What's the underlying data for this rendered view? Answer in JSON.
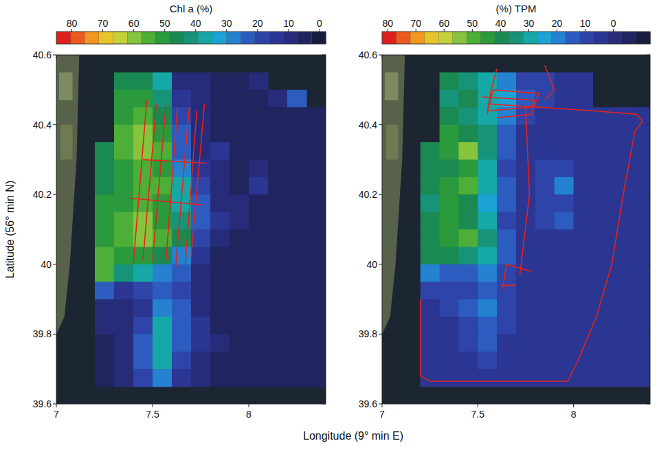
{
  "chart_data": [
    {
      "type": "heatmap",
      "title": "Chl a (%)",
      "xlabel": "Longitude (9° min E)",
      "ylabel": "Latitude (56° min N)",
      "xlim": [
        7,
        8.4
      ],
      "ylim": [
        39.6,
        40.6
      ],
      "xticks": [
        7,
        7.5,
        8
      ],
      "yticks": [
        39.6,
        39.8,
        40,
        40.2,
        40.4,
        40.6
      ],
      "colorbar": {
        "range": [
          85,
          -2
        ],
        "ticks": [
          80,
          70,
          60,
          50,
          40,
          30,
          20,
          10,
          0
        ]
      },
      "x": [
        7.05,
        7.15,
        7.25,
        7.35,
        7.45,
        7.55,
        7.65,
        7.75,
        7.85,
        7.95,
        8.05,
        8.15,
        8.25,
        8.35
      ],
      "y": [
        40.575,
        40.525,
        40.475,
        40.425,
        40.375,
        40.325,
        40.275,
        40.225,
        40.175,
        40.125,
        40.075,
        40.025,
        39.975,
        39.925,
        39.875,
        39.825,
        39.775,
        39.725,
        39.675,
        39.625
      ],
      "values": [
        [
          null,
          null,
          null,
          null,
          null,
          null,
          null,
          null,
          null,
          null,
          null,
          null,
          null,
          null
        ],
        [
          null,
          null,
          null,
          45,
          45,
          35,
          10,
          8,
          5,
          5,
          10,
          null,
          null,
          null
        ],
        [
          null,
          null,
          null,
          50,
          50,
          40,
          15,
          8,
          5,
          5,
          5,
          10,
          25,
          null
        ],
        [
          null,
          null,
          null,
          50,
          55,
          45,
          20,
          8,
          5,
          5,
          5,
          5,
          5,
          5
        ],
        [
          null,
          null,
          null,
          55,
          60,
          50,
          25,
          10,
          5,
          5,
          5,
          5,
          5,
          5
        ],
        [
          null,
          null,
          45,
          55,
          60,
          55,
          25,
          10,
          15,
          5,
          5,
          5,
          5,
          5
        ],
        [
          null,
          null,
          45,
          50,
          55,
          50,
          30,
          15,
          10,
          5,
          10,
          5,
          5,
          5
        ],
        [
          null,
          null,
          45,
          50,
          55,
          55,
          35,
          20,
          10,
          5,
          15,
          5,
          5,
          5
        ],
        [
          null,
          null,
          50,
          50,
          55,
          50,
          35,
          25,
          10,
          10,
          5,
          5,
          5,
          5
        ],
        [
          null,
          null,
          50,
          55,
          60,
          50,
          40,
          25,
          15,
          10,
          5,
          5,
          5,
          5
        ],
        [
          null,
          null,
          50,
          55,
          60,
          55,
          45,
          20,
          10,
          5,
          5,
          5,
          5,
          5
        ],
        [
          null,
          null,
          55,
          50,
          50,
          45,
          30,
          15,
          5,
          5,
          5,
          5,
          5,
          5
        ],
        [
          null,
          null,
          55,
          40,
          35,
          30,
          25,
          10,
          5,
          5,
          5,
          5,
          5,
          5
        ],
        [
          null,
          null,
          25,
          15,
          20,
          25,
          20,
          10,
          5,
          5,
          5,
          5,
          5,
          5
        ],
        [
          null,
          null,
          10,
          10,
          15,
          30,
          25,
          10,
          5,
          5,
          5,
          5,
          5,
          5
        ],
        [
          null,
          null,
          8,
          10,
          20,
          35,
          25,
          15,
          5,
          5,
          5,
          5,
          5,
          5
        ],
        [
          null,
          null,
          5,
          10,
          25,
          35,
          25,
          15,
          10,
          5,
          5,
          5,
          5,
          5
        ],
        [
          null,
          null,
          5,
          10,
          25,
          35,
          20,
          10,
          5,
          5,
          5,
          5,
          5,
          5
        ],
        [
          null,
          null,
          5,
          8,
          20,
          30,
          15,
          8,
          5,
          5,
          5,
          5,
          5,
          5
        ],
        [
          null,
          null,
          null,
          null,
          null,
          null,
          null,
          null,
          null,
          null,
          null,
          null,
          null,
          null
        ]
      ],
      "tracks": [
        {
          "lon": [
            7.4,
            7.47
          ],
          "lat": [
            40.0,
            40.47
          ]
        },
        {
          "lon": [
            7.45,
            7.52
          ],
          "lat": [
            40.01,
            40.46
          ]
        },
        {
          "lon": [
            7.5,
            7.57
          ],
          "lat": [
            40.01,
            40.46
          ]
        },
        {
          "lon": [
            7.57,
            7.63
          ],
          "lat": [
            40.01,
            40.45
          ]
        },
        {
          "lon": [
            7.62,
            7.69
          ],
          "lat": [
            39.99,
            40.45
          ]
        },
        {
          "lon": [
            7.67,
            7.73
          ],
          "lat": [
            40.0,
            40.44
          ]
        },
        {
          "lon": [
            7.7,
            7.77
          ],
          "lat": [
            40.02,
            40.46
          ]
        },
        {
          "lon": [
            7.45,
            7.78
          ],
          "lat": [
            40.3,
            40.29
          ]
        },
        {
          "lon": [
            7.38,
            7.76
          ],
          "lat": [
            40.19,
            40.17
          ]
        }
      ]
    },
    {
      "type": "heatmap",
      "title": "(%) TPM",
      "xlim": [
        7,
        8.4
      ],
      "ylim": [
        39.6,
        40.6
      ],
      "xticks": [
        7,
        7.5,
        8
      ],
      "yticks": [
        39.6,
        39.8,
        40,
        40.2,
        40.4,
        40.6
      ],
      "colorbar": {
        "range": [
          82,
          -13
        ],
        "ticks": [
          80,
          70,
          60,
          50,
          40,
          30,
          20,
          10,
          0
        ]
      },
      "x": [
        7.05,
        7.15,
        7.25,
        7.35,
        7.45,
        7.55,
        7.65,
        7.75,
        7.85,
        7.95,
        8.05,
        8.15,
        8.25,
        8.35
      ],
      "y": [
        40.575,
        40.525,
        40.475,
        40.425,
        40.375,
        40.325,
        40.275,
        40.225,
        40.175,
        40.125,
        40.075,
        40.025,
        39.975,
        39.925,
        39.875,
        39.825,
        39.775,
        39.725,
        39.675,
        39.625
      ],
      "values": [
        [
          null,
          null,
          null,
          null,
          null,
          null,
          null,
          null,
          null,
          null,
          null,
          null,
          null,
          null
        ],
        [
          null,
          null,
          null,
          40,
          35,
          30,
          20,
          10,
          10,
          5,
          5,
          null,
          null,
          null
        ],
        [
          null,
          null,
          null,
          35,
          40,
          30,
          25,
          15,
          10,
          5,
          5,
          null,
          null,
          null
        ],
        [
          null,
          null,
          null,
          40,
          35,
          30,
          20,
          10,
          5,
          5,
          5,
          5,
          5,
          5
        ],
        [
          null,
          null,
          null,
          45,
          40,
          35,
          15,
          5,
          5,
          5,
          5,
          5,
          5,
          5
        ],
        [
          null,
          null,
          40,
          45,
          55,
          35,
          15,
          5,
          5,
          5,
          5,
          5,
          5,
          5
        ],
        [
          null,
          null,
          40,
          40,
          45,
          30,
          10,
          5,
          10,
          10,
          5,
          5,
          5,
          5
        ],
        [
          null,
          null,
          40,
          45,
          50,
          30,
          15,
          5,
          10,
          20,
          5,
          5,
          5,
          5
        ],
        [
          null,
          null,
          35,
          45,
          40,
          25,
          15,
          5,
          10,
          10,
          5,
          5,
          5,
          5
        ],
        [
          null,
          null,
          40,
          45,
          40,
          30,
          10,
          5,
          10,
          15,
          5,
          5,
          5,
          5
        ],
        [
          null,
          null,
          40,
          45,
          50,
          35,
          15,
          5,
          5,
          5,
          5,
          5,
          5,
          5
        ],
        [
          null,
          null,
          40,
          40,
          35,
          30,
          15,
          5,
          5,
          5,
          5,
          5,
          5,
          5
        ],
        [
          null,
          null,
          20,
          15,
          15,
          20,
          10,
          5,
          5,
          5,
          5,
          5,
          5,
          5
        ],
        [
          null,
          null,
          10,
          10,
          10,
          15,
          10,
          5,
          5,
          5,
          5,
          5,
          5,
          5
        ],
        [
          null,
          null,
          5,
          10,
          15,
          20,
          10,
          5,
          5,
          5,
          5,
          5,
          5,
          5
        ],
        [
          null,
          null,
          5,
          5,
          10,
          15,
          10,
          5,
          5,
          5,
          5,
          5,
          5,
          5
        ],
        [
          null,
          null,
          5,
          5,
          10,
          15,
          5,
          5,
          5,
          5,
          5,
          5,
          5,
          5
        ],
        [
          null,
          null,
          5,
          5,
          5,
          10,
          5,
          5,
          5,
          5,
          5,
          5,
          5,
          5
        ],
        [
          null,
          null,
          5,
          5,
          5,
          5,
          5,
          5,
          5,
          5,
          5,
          5,
          5,
          5
        ],
        [
          null,
          null,
          null,
          null,
          null,
          null,
          null,
          null,
          null,
          null,
          null,
          null,
          null,
          null
        ]
      ],
      "tracks": [
        {
          "lon": [
            7.2,
            7.2,
            7.25,
            7.97,
            8.02,
            8.12,
            8.2,
            8.26,
            8.32,
            8.36,
            8.33,
            8.1,
            7.55
          ],
          "lat": [
            39.9,
            39.68,
            39.665,
            39.665,
            39.72,
            39.85,
            40.0,
            40.2,
            40.38,
            40.41,
            40.43,
            40.44,
            40.46
          ]
        },
        {
          "lon": [
            7.52,
            7.8,
            7.78,
            7.55,
            7.58,
            7.82,
            7.78,
            7.6
          ],
          "lat": [
            40.48,
            40.47,
            40.45,
            40.44,
            40.5,
            40.49,
            40.43,
            40.42
          ]
        },
        {
          "lon": [
            7.55,
            7.57,
            7.6
          ],
          "lat": [
            40.43,
            40.5,
            40.56
          ]
        },
        {
          "lon": [
            7.75,
            7.77,
            7.72
          ],
          "lat": [
            40.45,
            40.2,
            39.97
          ]
        },
        {
          "lon": [
            7.63,
            7.65,
            7.78
          ],
          "lat": [
            39.93,
            40.0,
            39.98
          ]
        },
        {
          "lon": [
            7.62,
            7.7
          ],
          "lat": [
            39.94,
            39.94
          ]
        },
        {
          "lon": [
            7.85,
            7.9,
            7.85
          ],
          "lat": [
            40.57,
            40.5,
            40.47
          ]
        }
      ]
    }
  ]
}
